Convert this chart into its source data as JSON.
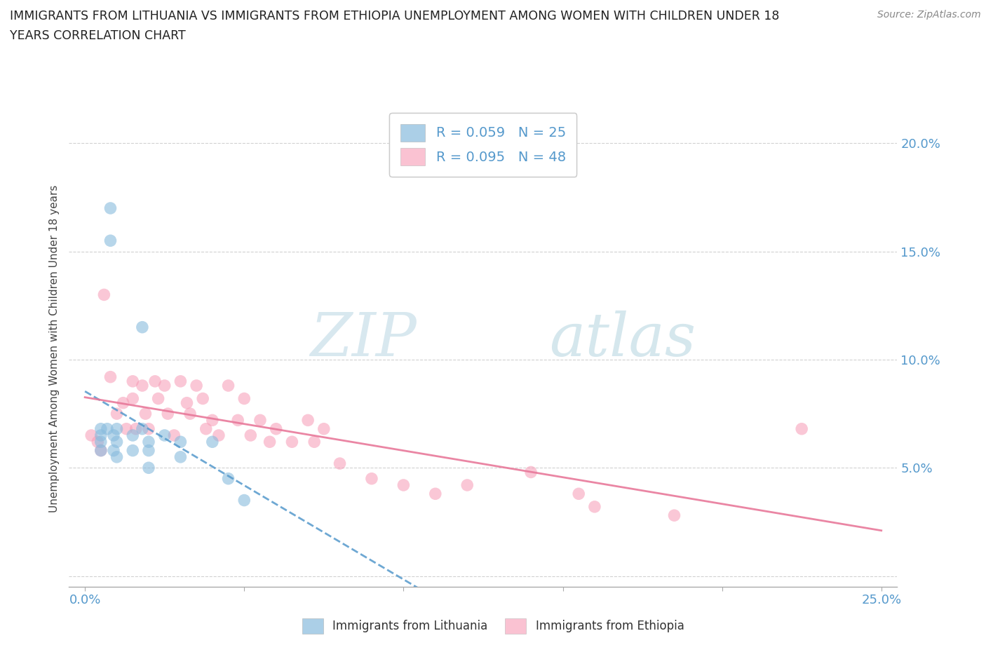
{
  "title_line1": "IMMIGRANTS FROM LITHUANIA VS IMMIGRANTS FROM ETHIOPIA UNEMPLOYMENT AMONG WOMEN WITH CHILDREN UNDER 18",
  "title_line2": "YEARS CORRELATION CHART",
  "source": "Source: ZipAtlas.com",
  "ylabel": "Unemployment Among Women with Children Under 18 years",
  "xlim": [
    -0.005,
    0.255
  ],
  "ylim": [
    -0.005,
    0.215
  ],
  "x_ticks": [
    0.0,
    0.05,
    0.1,
    0.15,
    0.2,
    0.25
  ],
  "x_tick_labels": [
    "0.0%",
    "",
    "",
    "",
    "",
    "25.0%"
  ],
  "y_ticks": [
    0.0,
    0.05,
    0.1,
    0.15,
    0.2
  ],
  "y_tick_labels_right": [
    "",
    "5.0%",
    "10.0%",
    "15.0%",
    "20.0%"
  ],
  "legend_r1": "R = 0.059",
  "legend_n1": "N = 25",
  "legend_r2": "R = 0.095",
  "legend_n2": "N = 48",
  "color_blue": "#88bbdd",
  "color_pink": "#f79ab5",
  "line_blue_color": "#5599cc",
  "line_pink_color": "#e8799a",
  "watermark_zip": "ZIP",
  "watermark_atlas": "atlas",
  "label_lith": "Immigrants from Lithuania",
  "label_eth": "Immigrants from Ethiopia",
  "lithuania_x": [
    0.005,
    0.005,
    0.005,
    0.005,
    0.007,
    0.008,
    0.008,
    0.009,
    0.009,
    0.01,
    0.01,
    0.01,
    0.015,
    0.015,
    0.018,
    0.018,
    0.02,
    0.02,
    0.02,
    0.025,
    0.03,
    0.03,
    0.04,
    0.045,
    0.05
  ],
  "lithuania_y": [
    0.068,
    0.065,
    0.062,
    0.058,
    0.068,
    0.17,
    0.155,
    0.065,
    0.058,
    0.068,
    0.062,
    0.055,
    0.065,
    0.058,
    0.115,
    0.068,
    0.062,
    0.058,
    0.05,
    0.065,
    0.062,
    0.055,
    0.062,
    0.045,
    0.035
  ],
  "ethiopia_x": [
    0.002,
    0.004,
    0.005,
    0.006,
    0.008,
    0.01,
    0.012,
    0.013,
    0.015,
    0.015,
    0.016,
    0.018,
    0.019,
    0.02,
    0.022,
    0.023,
    0.025,
    0.026,
    0.028,
    0.03,
    0.032,
    0.033,
    0.035,
    0.037,
    0.038,
    0.04,
    0.042,
    0.045,
    0.048,
    0.05,
    0.052,
    0.055,
    0.058,
    0.06,
    0.065,
    0.07,
    0.072,
    0.075,
    0.08,
    0.09,
    0.1,
    0.11,
    0.12,
    0.14,
    0.155,
    0.16,
    0.185,
    0.225
  ],
  "ethiopia_y": [
    0.065,
    0.062,
    0.058,
    0.13,
    0.092,
    0.075,
    0.08,
    0.068,
    0.09,
    0.082,
    0.068,
    0.088,
    0.075,
    0.068,
    0.09,
    0.082,
    0.088,
    0.075,
    0.065,
    0.09,
    0.08,
    0.075,
    0.088,
    0.082,
    0.068,
    0.072,
    0.065,
    0.088,
    0.072,
    0.082,
    0.065,
    0.072,
    0.062,
    0.068,
    0.062,
    0.072,
    0.062,
    0.068,
    0.052,
    0.045,
    0.042,
    0.038,
    0.042,
    0.048,
    0.038,
    0.032,
    0.028,
    0.068
  ]
}
